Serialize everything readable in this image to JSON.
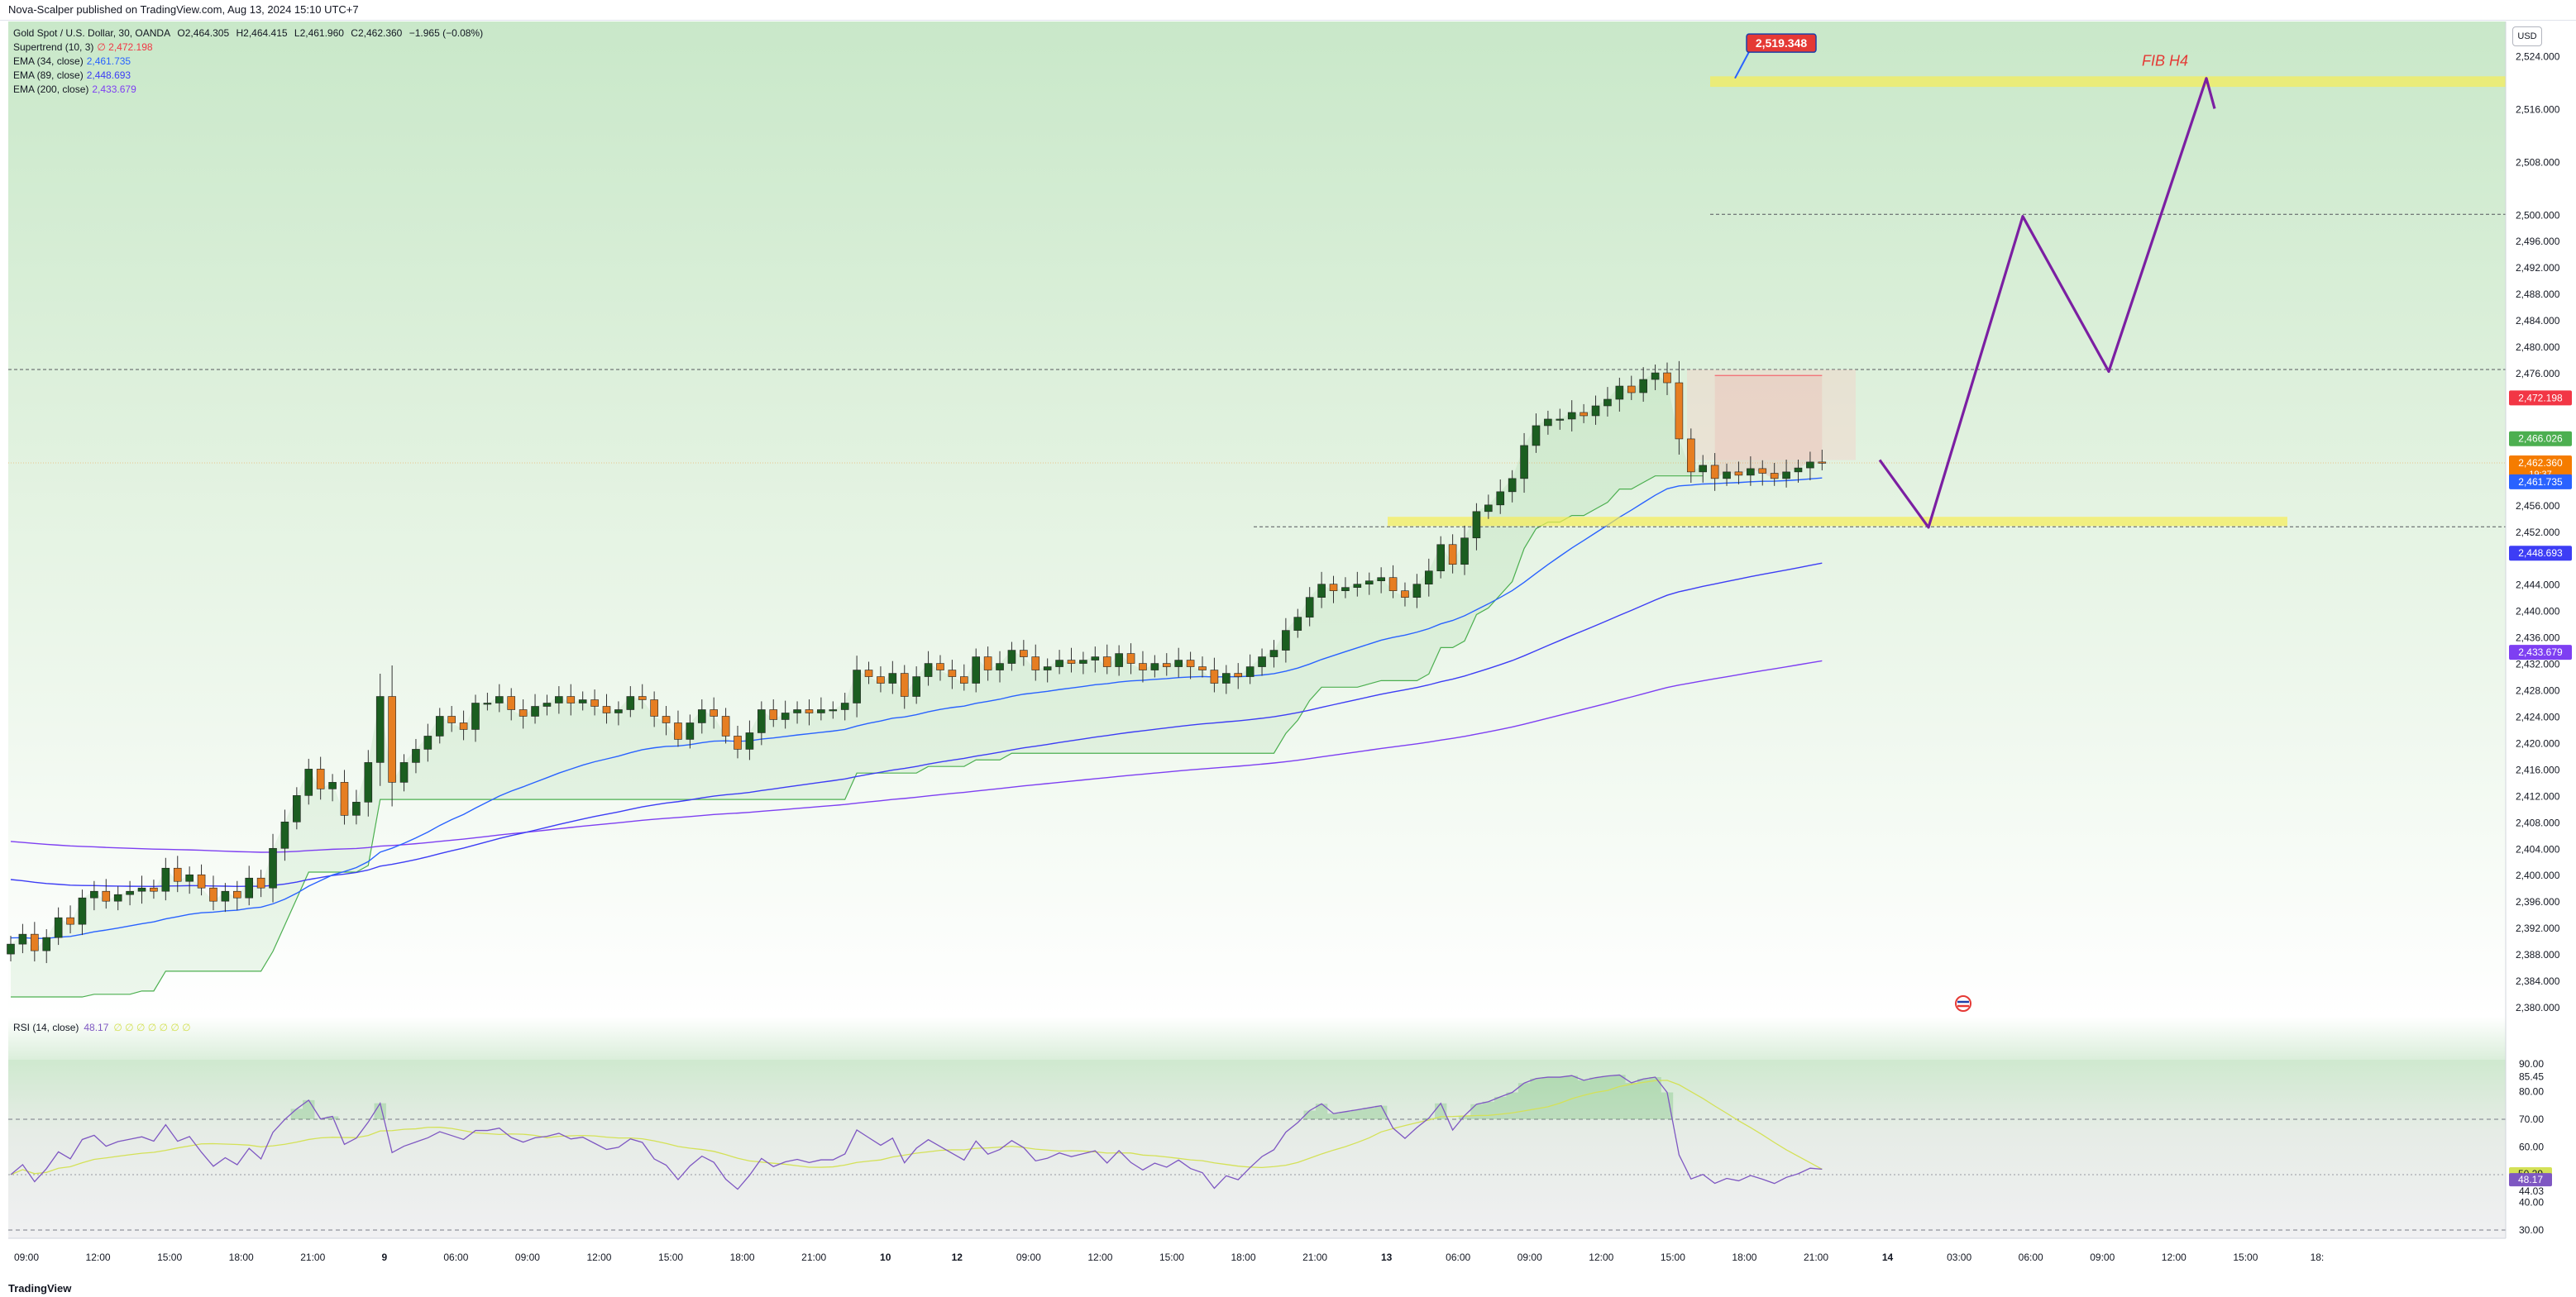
{
  "header": {
    "text": "Nova-Scalper published on TradingView.com, Aug 13, 2024 15:10 UTC+7"
  },
  "currency": "USD",
  "legend": {
    "symbol": "Gold Spot / U.S. Dollar, 30, OANDA",
    "open": "O2,464.305",
    "high": "H2,464.415",
    "low": "L2,461.960",
    "close": "C2,462.360",
    "change": "−1.965 (−0.08%)",
    "indicators": [
      {
        "label": "Supertrend (10, 3)",
        "value": "∅ 2,472.198",
        "color": "#f23645"
      },
      {
        "label": "EMA (34, close)",
        "value": "2,461.735",
        "color": "#2962ff"
      },
      {
        "label": "EMA (89, close)",
        "value": "2,448.693",
        "color": "#3d3df5"
      },
      {
        "label": "EMA (200, close)",
        "value": "2,433.679",
        "color": "#7e3ff2"
      }
    ]
  },
  "rsi_legend": {
    "label": "RSI (14, close)",
    "value": "48.17",
    "value2": "∅ ∅ ∅ ∅ ∅ ∅ ∅"
  },
  "footer": {
    "logo": "TradingView"
  },
  "annotations": {
    "target_label": "2,519.348",
    "fib_label": "FIB H4"
  },
  "price_badges": [
    {
      "text": "2,472.198",
      "price": 2472.198,
      "color": "#f23645"
    },
    {
      "text": "2,466.026",
      "price": 2466.026,
      "color": "#4caf50"
    },
    {
      "text": "2,462.360",
      "price": 2462.36,
      "color": "#f57c00",
      "sub": "19:37"
    },
    {
      "text": "2,461.735",
      "price": 2459.5,
      "color": "#2962ff"
    },
    {
      "text": "2,448.693",
      "price": 2448.693,
      "color": "#3d3df5"
    },
    {
      "text": "2,433.679",
      "price": 2433.679,
      "color": "#7e3ff2"
    }
  ],
  "rsi_badges": [
    {
      "text": "50.29",
      "value": 50.29,
      "color": "#d4e157",
      "fg": "#131722"
    },
    {
      "text": "48.17",
      "value": 48.17,
      "color": "#7e57c2",
      "fg": "#ffffff"
    }
  ],
  "chart_data": {
    "type": "candlestick",
    "price_axis": {
      "ylim": [
        2378.5,
        2529.2
      ],
      "ticks": [
        "2,524.000",
        "2,516.000",
        "2,508.000",
        "2,500.000",
        "2,496.000",
        "2,492.000",
        "2,488.000",
        "2,484.000",
        "2,480.000",
        "2,476.000",
        "2,456.000",
        "2,452.000",
        "2,444.000",
        "2,440.000",
        "2,436.000",
        "2,432.000",
        "2,428.000",
        "2,424.000",
        "2,420.000",
        "2,416.000",
        "2,412.000",
        "2,408.000",
        "2,404.000",
        "2,400.000",
        "2,396.000",
        "2,392.000",
        "2,388.000",
        "2,384.000",
        "2,380.000"
      ]
    },
    "time_axis": [
      "09:00",
      "12:00",
      "15:00",
      "18:00",
      "21:00",
      "9",
      "06:00",
      "09:00",
      "12:00",
      "15:00",
      "18:00",
      "21:00",
      "10",
      "12",
      "09:00",
      "12:00",
      "15:00",
      "18:00",
      "21:00",
      "13",
      "06:00",
      "09:00",
      "12:00",
      "15:00",
      "18:00",
      "21:00",
      "14",
      "03:00",
      "06:00",
      "09:00",
      "12:00",
      "15:00",
      "18:"
    ],
    "rsi_axis": {
      "ylim": [
        27,
        91.5
      ],
      "ticks": [
        "90.00",
        "85.45",
        "80.00",
        "70.00",
        "60.00",
        "44.03",
        "40.00",
        "30.00"
      ],
      "levels": [
        70,
        50,
        30
      ]
    },
    "closes": [
      2389.5,
      2391,
      2388.5,
      2390.5,
      2393.5,
      2392.5,
      2396.5,
      2397.5,
      2396,
      2397,
      2397.5,
      2398,
      2397.5,
      2401,
      2399,
      2400,
      2398,
      2396,
      2397.5,
      2396.5,
      2399.5,
      2398,
      2404,
      2408,
      2412,
      2416,
      2413,
      2414,
      2409,
      2411,
      2417,
      2427,
      2414,
      2417,
      2419,
      2421,
      2424,
      2423,
      2422,
      2426,
      2426,
      2427,
      2425,
      2424,
      2425.5,
      2426,
      2427,
      2426,
      2426.5,
      2425.5,
      2424.5,
      2425,
      2427,
      2426.5,
      2424,
      2423,
      2420.5,
      2423,
      2425,
      2424,
      2421,
      2419,
      2421.5,
      2425,
      2423.5,
      2424.5,
      2425,
      2424.5,
      2425,
      2425,
      2426,
      2431,
      2430,
      2429,
      2430.5,
      2427,
      2430,
      2432,
      2431,
      2430,
      2429,
      2433,
      2431,
      2432,
      2434,
      2433,
      2431,
      2431.5,
      2432.5,
      2432,
      2432.5,
      2433,
      2431.5,
      2433.5,
      2432,
      2431,
      2432,
      2431.5,
      2432.5,
      2431.5,
      2431,
      2429,
      2430.5,
      2430,
      2431.5,
      2433,
      2434,
      2437,
      2439,
      2442,
      2444,
      2443,
      2443.5,
      2444,
      2444.5,
      2445,
      2443,
      2442,
      2444,
      2446,
      2450,
      2447,
      2451,
      2455,
      2456,
      2458,
      2460,
      2465,
      2468,
      2469,
      2469,
      2470,
      2469.5,
      2471,
      2472,
      2474,
      2473,
      2475,
      2476,
      2474.5,
      2466,
      2461,
      2462,
      2460,
      2461,
      2460.5,
      2461.5,
      2460.8,
      2460,
      2461,
      2461.6,
      2462.5,
      2462.36
    ],
    "price_levels": [
      2500,
      2476.5,
      2452.7
    ],
    "zones": [
      {
        "from": 2519.3,
        "to": 2520.9,
        "label": "FIB H4"
      },
      {
        "from": 2452.8,
        "to": 2454.2
      }
    ],
    "projection": [
      [
        2462.8,
        0
      ],
      [
        2452.6,
        1
      ],
      [
        2499.7,
        2
      ],
      [
        2476.2,
        3
      ],
      [
        2520.6,
        4
      ],
      [
        2516,
        4.1
      ]
    ]
  }
}
